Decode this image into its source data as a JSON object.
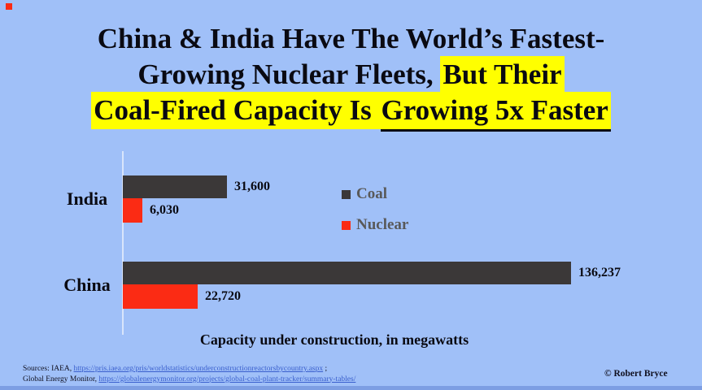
{
  "slide": {
    "background_color": "#A0C0F8",
    "corner_mark_color": "#FB2B14",
    "bottom_edge_color": "#7D9EE3",
    "copyright": "© Robert Bryce"
  },
  "title": {
    "line1": "China & India Have The World’s Fastest-",
    "line2_plain": "Growing Nuclear Fleets, ",
    "line2_highlight": "But Their",
    "line3_highlight": "Coal-Fired Capacity Is ",
    "line3_underlined": "Growing 5x Faster",
    "highlight_color": "#FFFF00"
  },
  "chart_data": {
    "type": "bar",
    "orientation": "horizontal",
    "categories": [
      "India",
      "China"
    ],
    "series": [
      {
        "name": "Coal",
        "color": "#3B3838",
        "values": [
          31600,
          136237
        ],
        "labels": [
          "31,600",
          "136,237"
        ]
      },
      {
        "name": "Nuclear",
        "color": "#FB2B14",
        "values": [
          6030,
          22720
        ],
        "labels": [
          "6,030",
          "22,720"
        ]
      }
    ],
    "xlabel": "Capacity under construction, in megawatts",
    "xlim": [
      0,
      140000
    ],
    "grid": false,
    "legend_position": "inside-right-of-india-group"
  },
  "legend": {
    "text_color": "#595959",
    "items": [
      {
        "label": "Coal",
        "color": "#3B3838"
      },
      {
        "label": "Nuclear",
        "color": "#FB2B14"
      }
    ]
  },
  "footer": {
    "sources_prefix": "Sources: IAEA, ",
    "source1_link": "https://pris.iaea.org/pris/worldstatistics/underconstructionreactorsbycountry.aspx",
    "source1_suffix": " ;",
    "source2_prefix": "Global Energy Monitor, ",
    "source2_link": "https://globalenergymonitor.org/projects/global-coal-plant-tracker/summary-tables/",
    "link_color": "#3A5FCD"
  }
}
